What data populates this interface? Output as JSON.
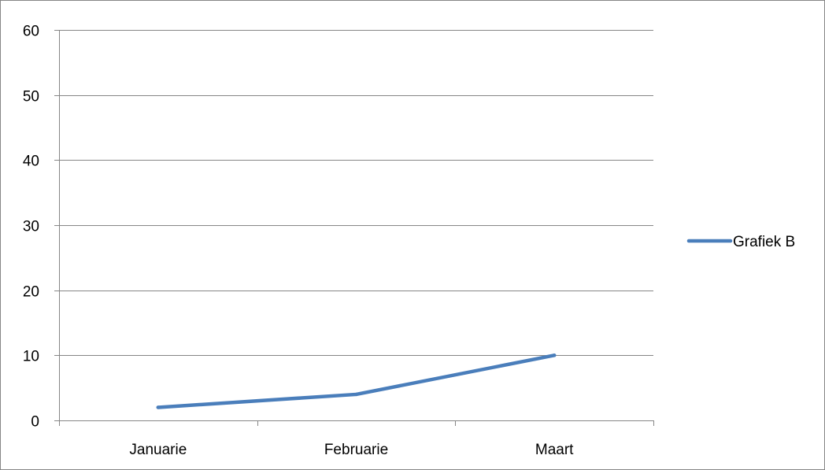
{
  "chart_data": {
    "type": "line",
    "categories": [
      "Januarie",
      "Februarie",
      "Maart"
    ],
    "series": [
      {
        "name": "Grafiek B",
        "values": [
          2,
          4,
          10
        ],
        "color": "#4a7ebb"
      }
    ],
    "ylim": [
      0,
      60
    ],
    "yticks": [
      0,
      10,
      20,
      30,
      40,
      50,
      60
    ],
    "ytick_labels": [
      "0",
      "10",
      "20",
      "30",
      "40",
      "50",
      "60"
    ],
    "title": "",
    "xlabel": "",
    "ylabel": "",
    "grid": true,
    "legend_position": "right"
  },
  "colors": {
    "gridline": "#868686",
    "axis": "#868686",
    "frame": "#868686"
  }
}
